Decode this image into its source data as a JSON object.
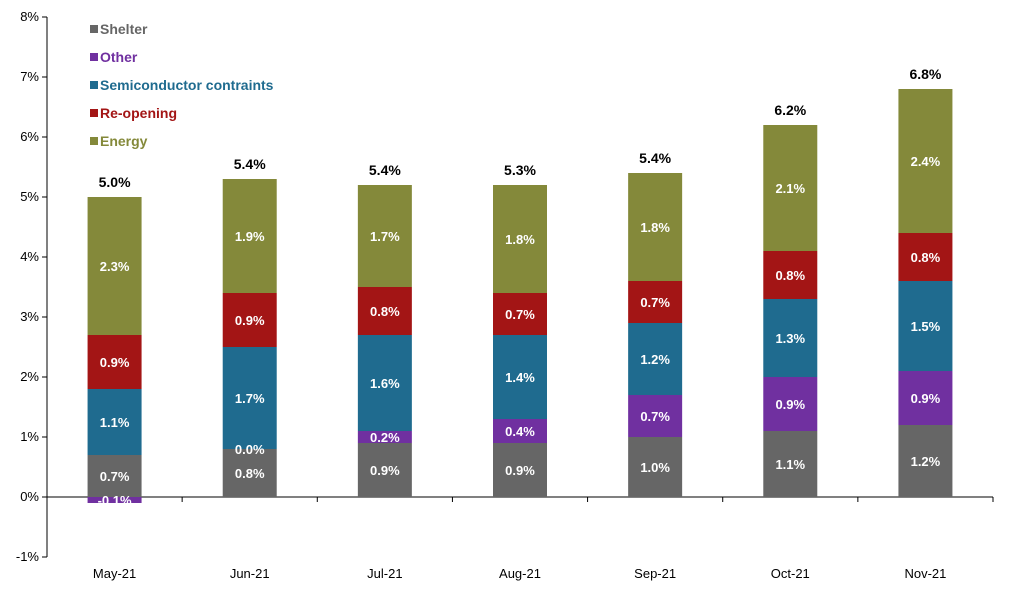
{
  "chart_data": {
    "type": "bar",
    "stacked": true,
    "categories": [
      "May-21",
      "Jun-21",
      "Jul-21",
      "Aug-21",
      "Sep-21",
      "Oct-21",
      "Nov-21"
    ],
    "series": [
      {
        "name": "Shelter",
        "color": "#666666",
        "values": [
          0.7,
          0.8,
          0.9,
          0.9,
          1.0,
          1.1,
          1.2
        ],
        "labels": [
          "0.7%",
          "0.8%",
          "0.9%",
          "0.9%",
          "1.0%",
          "1.1%",
          "1.2%"
        ]
      },
      {
        "name": "Other",
        "color": "#7030A0",
        "values": [
          -0.1,
          0.0,
          0.2,
          0.4,
          0.7,
          0.9,
          0.9
        ],
        "labels": [
          "-0.1%",
          "0.0%",
          "0.2%",
          "0.4%",
          "0.7%",
          "0.9%",
          "0.9%"
        ]
      },
      {
        "name": "Semiconductor contraints",
        "color": "#1F6B8F",
        "values": [
          1.1,
          1.7,
          1.6,
          1.4,
          1.2,
          1.3,
          1.5
        ],
        "labels": [
          "1.1%",
          "1.7%",
          "1.6%",
          "1.4%",
          "1.2%",
          "1.3%",
          "1.5%"
        ]
      },
      {
        "name": "Re-opening",
        "color": "#A31515",
        "values": [
          0.9,
          0.9,
          0.8,
          0.7,
          0.7,
          0.8,
          0.8
        ],
        "labels": [
          "0.9%",
          "0.9%",
          "0.8%",
          "0.7%",
          "0.7%",
          "0.8%",
          "0.8%"
        ]
      },
      {
        "name": "Energy",
        "color": "#84893A",
        "values": [
          2.3,
          1.9,
          1.7,
          1.8,
          1.8,
          2.1,
          2.4
        ],
        "labels": [
          "2.3%",
          "1.9%",
          "1.7%",
          "1.8%",
          "1.8%",
          "2.1%",
          "2.4%"
        ]
      }
    ],
    "totals": [
      5.0,
      5.4,
      5.4,
      5.3,
      5.4,
      6.2,
      6.8
    ],
    "total_labels": [
      "5.0%",
      "5.4%",
      "5.4%",
      "5.3%",
      "5.4%",
      "6.2%",
      "6.8%"
    ],
    "ylim": [
      -1,
      8
    ],
    "yticks": [
      -1,
      0,
      1,
      2,
      3,
      4,
      5,
      6,
      7,
      8
    ],
    "ytick_labels": [
      "-1%",
      "0%",
      "1%",
      "2%",
      "3%",
      "4%",
      "5%",
      "6%",
      "7%",
      "8%"
    ],
    "title": "",
    "xlabel": "",
    "ylabel": "",
    "grid": false,
    "legend": {
      "position": "top-left",
      "order": [
        "Shelter",
        "Other",
        "Semiconductor contraints",
        "Re-opening",
        "Energy"
      ]
    }
  }
}
